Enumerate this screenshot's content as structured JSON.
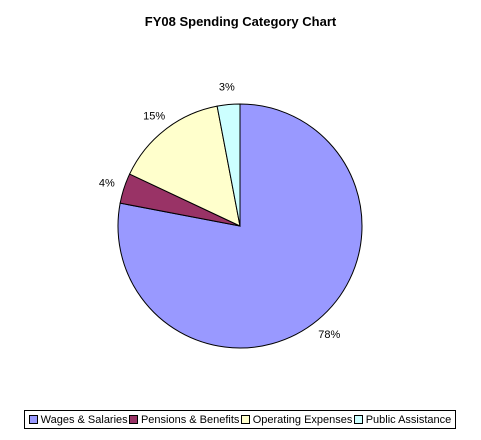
{
  "chart_data": {
    "type": "pie",
    "title": "FY08 Spending Category Chart",
    "slices": [
      {
        "name": "Wages & Salaries",
        "value": 78,
        "label": "78%",
        "color": "#9999FF"
      },
      {
        "name": "Pensions & Benefits",
        "value": 4,
        "label": "4%",
        "color": "#993366"
      },
      {
        "name": "Operating Expenses",
        "value": 15,
        "label": "15%",
        "color": "#FFFFCC"
      },
      {
        "name": "Public Assistance",
        "value": 3,
        "label": "3%",
        "color": "#CCFFFF"
      }
    ],
    "legend_position": "bottom"
  }
}
